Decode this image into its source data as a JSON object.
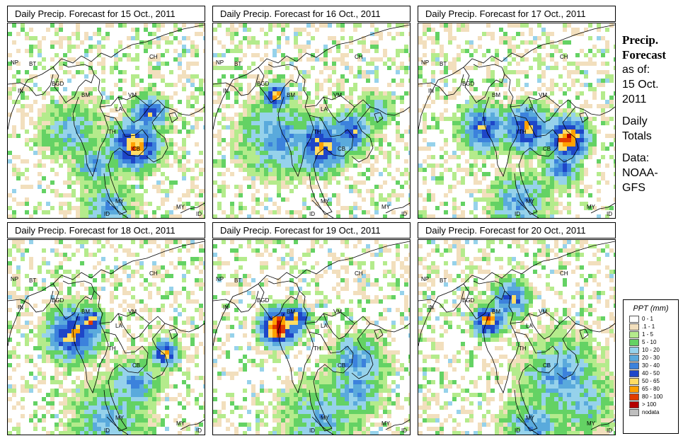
{
  "panels": [
    {
      "title": "Daily Precip. Forecast for  15 Oct., 2011",
      "day": 15
    },
    {
      "title": "Daily Precip. Forecast for  16 Oct., 2011",
      "day": 16
    },
    {
      "title": "Daily Precip. Forecast for  17 Oct., 2011",
      "day": 17
    },
    {
      "title": "Daily Precip. Forecast for  18 Oct., 2011",
      "day": 18
    },
    {
      "title": "Daily Precip. Forecast for  19 Oct., 2011",
      "day": 19
    },
    {
      "title": "Daily Precip. Forecast for  20 Oct., 2011",
      "day": 20
    }
  ],
  "country_labels": [
    "NP",
    "BT",
    "BGD",
    "IN",
    "CH",
    "BM",
    "VM",
    "LA",
    "TH",
    "CB",
    "MY",
    "MY",
    "ID",
    "ID"
  ],
  "side": {
    "title_line1": "Precip.",
    "title_line2": "Forecast",
    "asof_label": "as of:",
    "date_line1": "15 Oct.",
    "date_line2": "2011",
    "totals_line1": "Daily",
    "totals_line2": "Totals",
    "data_label": "Data:",
    "source_line1": "NOAA-",
    "source_line2": "GFS"
  },
  "legend": {
    "title": "PPT (mm)",
    "items": [
      {
        "label": "0 - 1",
        "color": "#ffffff"
      },
      {
        "label": ".1 - 1",
        "color": "#f2dfbd"
      },
      {
        "label": "1 - 5",
        "color": "#b4eb8c"
      },
      {
        "label": "5 - 10",
        "color": "#64d264"
      },
      {
        "label": "10 - 20",
        "color": "#96d2eb"
      },
      {
        "label": "20 - 30",
        "color": "#5aaadc"
      },
      {
        "label": "30 - 40",
        "color": "#3c82dc"
      },
      {
        "label": "40 - 50",
        "color": "#1e46c8"
      },
      {
        "label": "50 - 65",
        "color": "#ffdc64"
      },
      {
        "label": "65 - 80",
        "color": "#ffa000"
      },
      {
        "label": "80 - 100",
        "color": "#e13c00"
      },
      {
        "label": "> 100",
        "color": "#b40000"
      },
      {
        "label": "nodata",
        "color": "#bebebe"
      }
    ]
  }
}
